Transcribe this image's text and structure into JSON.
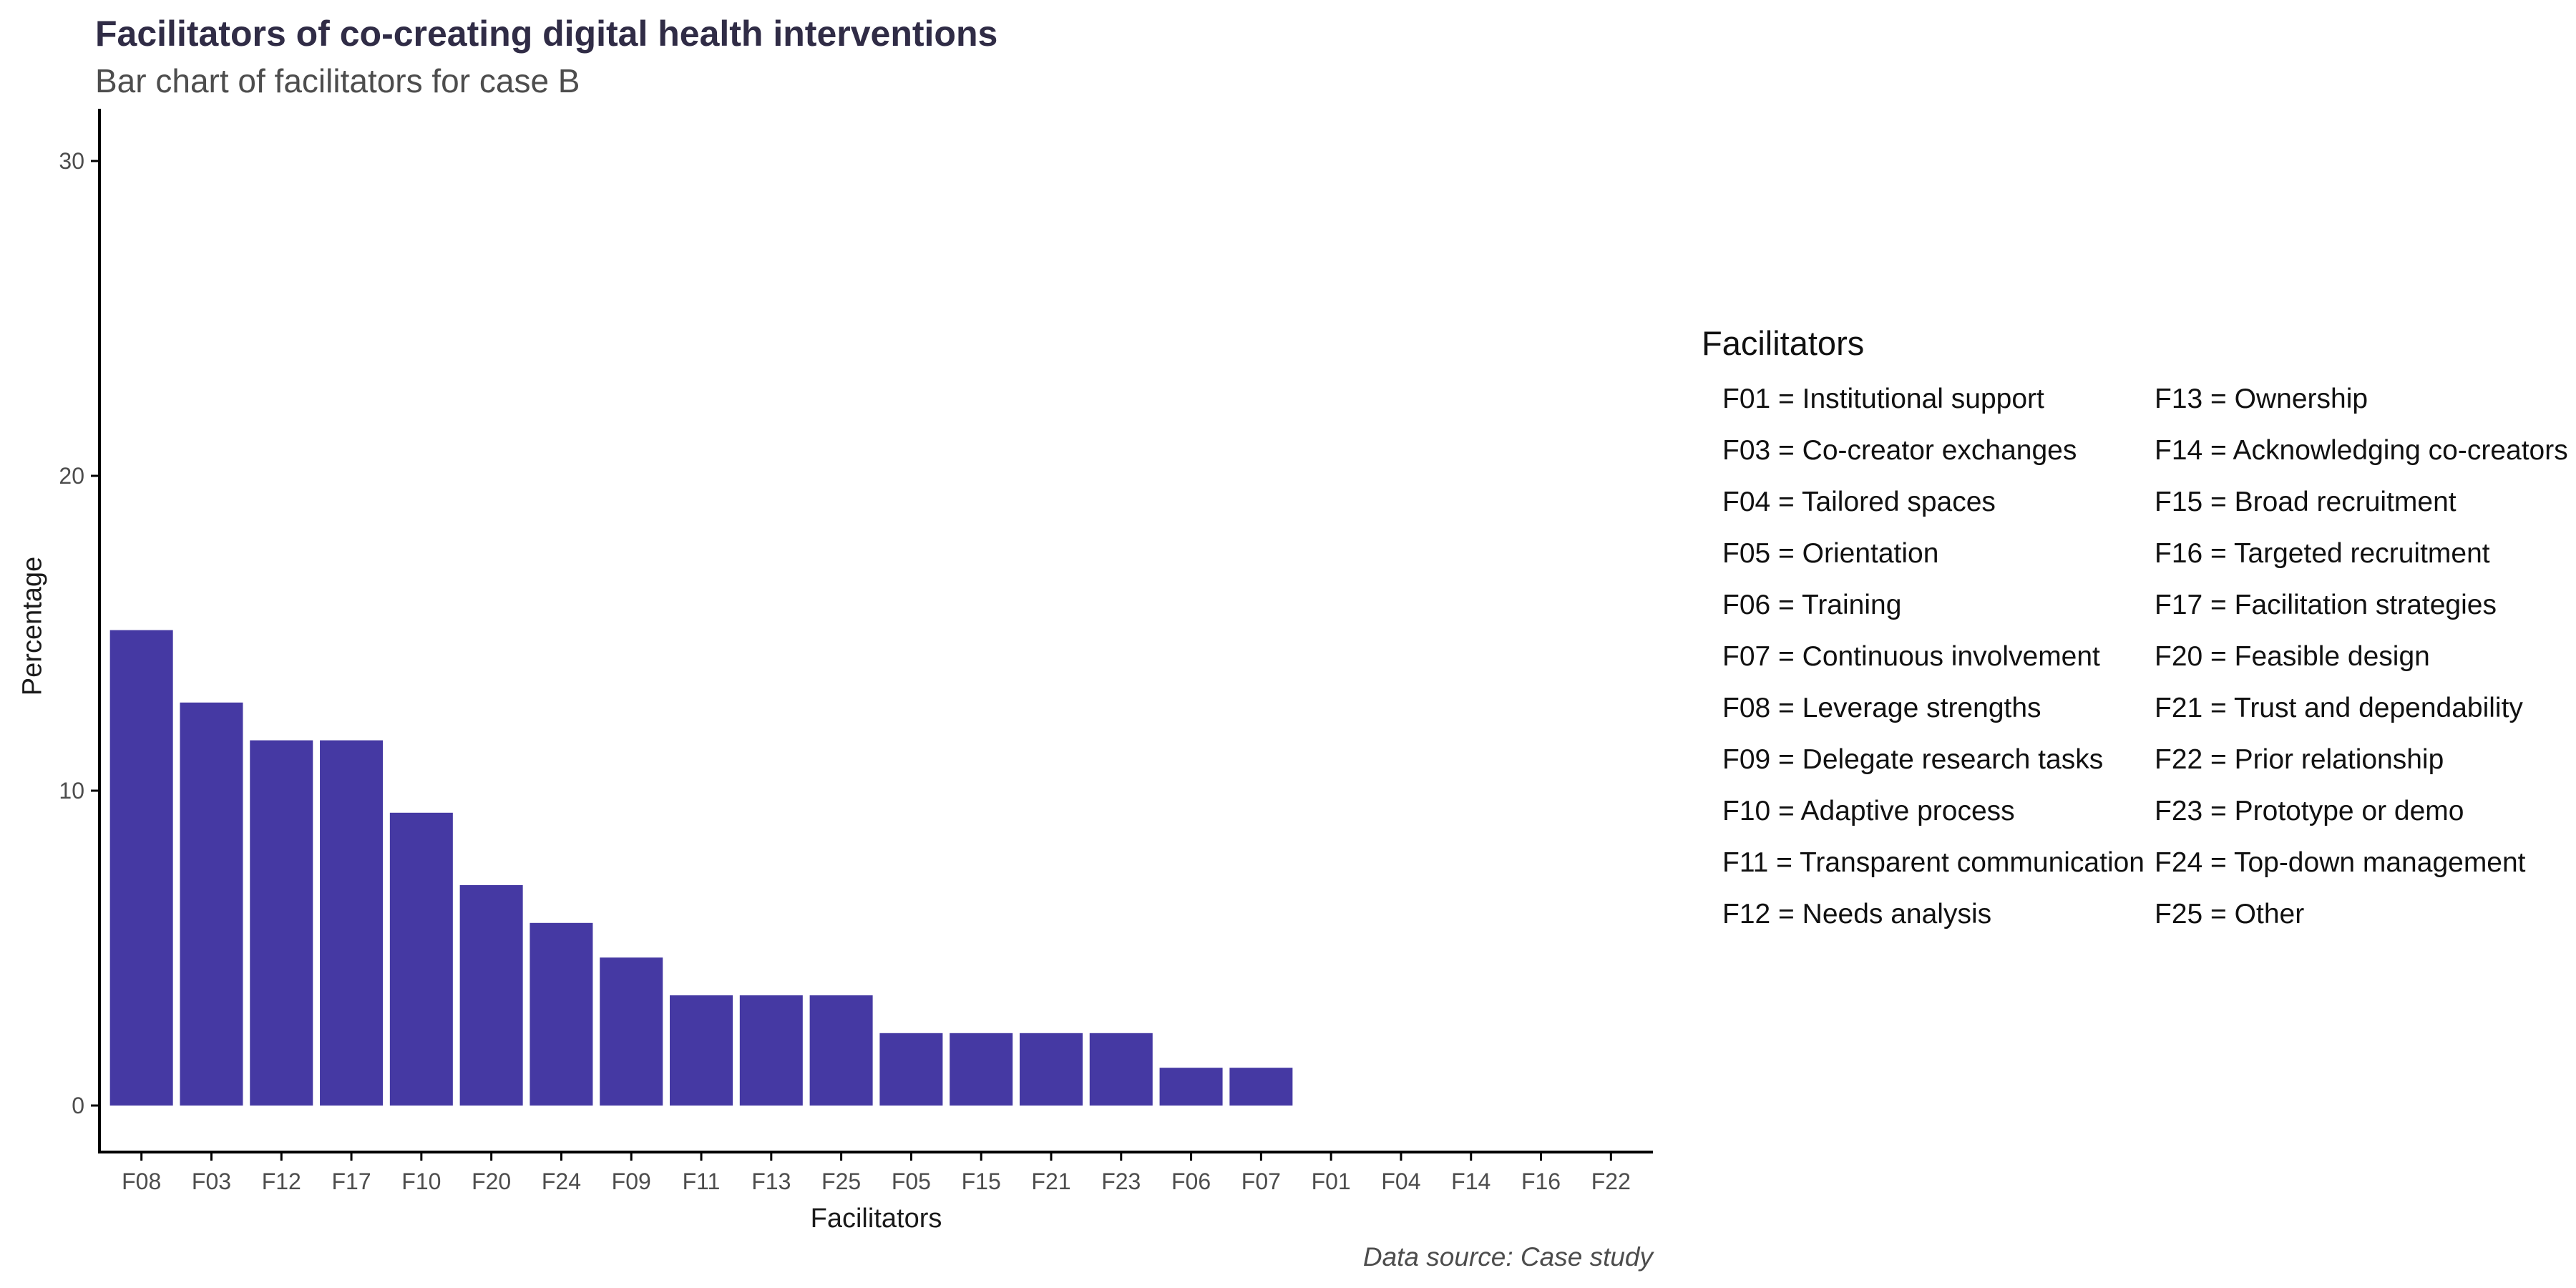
{
  "chart_data": {
    "type": "bar",
    "title": "Facilitators of co-creating digital health interventions",
    "subtitle": "Bar chart of facilitators for case B",
    "caption": "Data source: Case study",
    "xlabel": "Facilitators",
    "ylabel": "Percentage",
    "categories": [
      "F08",
      "F03",
      "F12",
      "F17",
      "F10",
      "F20",
      "F24",
      "F09",
      "F11",
      "F13",
      "F25",
      "F05",
      "F15",
      "F21",
      "F23",
      "F06",
      "F07",
      "F01",
      "F04",
      "F14",
      "F16",
      "F22"
    ],
    "values": [
      15.1,
      12.8,
      11.6,
      11.6,
      9.3,
      7.0,
      5.8,
      4.7,
      3.5,
      3.5,
      3.5,
      2.3,
      2.3,
      2.3,
      2.3,
      1.2,
      1.2,
      0,
      0,
      0,
      0,
      0
    ],
    "ylim": [
      0,
      31.7
    ],
    "yticks": [
      0,
      10,
      20,
      30
    ],
    "grid": "off",
    "legend_position": "right"
  },
  "legend": {
    "title": "Facilitators",
    "columns": [
      [
        {
          "code": "F01",
          "label": "Institutional support"
        },
        {
          "code": "F03",
          "label": "Co-creator exchanges"
        },
        {
          "code": "F04",
          "label": "Tailored spaces"
        },
        {
          "code": "F05",
          "label": "Orientation"
        },
        {
          "code": "F06",
          "label": "Training"
        },
        {
          "code": "F07",
          "label": "Continuous involvement"
        },
        {
          "code": "F08",
          "label": "Leverage strengths"
        },
        {
          "code": "F09",
          "label": "Delegate research tasks"
        },
        {
          "code": "F10",
          "label": "Adaptive process"
        },
        {
          "code": "F11",
          "label": "Transparent communication"
        },
        {
          "code": "F12",
          "label": "Needs analysis"
        }
      ],
      [
        {
          "code": "F13",
          "label": "Ownership"
        },
        {
          "code": "F14",
          "label": "Acknowledging co-creators"
        },
        {
          "code": "F15",
          "label": "Broad recruitment"
        },
        {
          "code": "F16",
          "label": "Targeted recruitment"
        },
        {
          "code": "F17",
          "label": "Facilitation strategies"
        },
        {
          "code": "F20",
          "label": "Feasible design"
        },
        {
          "code": "F21",
          "label": "Trust and dependability"
        },
        {
          "code": "F22",
          "label": "Prior relationship"
        },
        {
          "code": "F23",
          "label": "Prototype or demo"
        },
        {
          "code": "F24",
          "label": "Top-down management"
        },
        {
          "code": "F25",
          "label": "Other"
        }
      ]
    ]
  },
  "colors": {
    "bar": "#4539a3",
    "title": "#302c46",
    "subtitle": "#4d4d4d",
    "axis_text": "#4d4d4d",
    "axis_title": "#1a1a1a",
    "axis_line": "#000000",
    "caption": "#4d4d4d",
    "legend_text": "#111111",
    "legend_title": "#111111",
    "background": "#ffffff"
  }
}
